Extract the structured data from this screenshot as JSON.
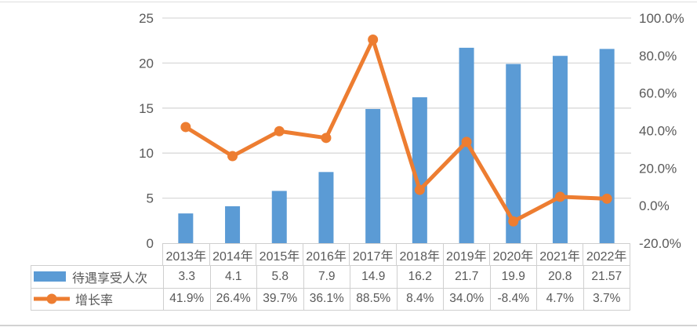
{
  "colors": {
    "bar": "#5B9BD5",
    "line": "#ED7D31",
    "grid": "#D9D9D9",
    "axis_text": "#595959",
    "table_border": "#CFCFCF",
    "background": "#FFFFFF"
  },
  "chart_data": {
    "type": "bar+line combo",
    "title": "",
    "categories": [
      "2013年",
      "2014年",
      "2015年",
      "2016年",
      "2017年",
      "2018年",
      "2019年",
      "2020年",
      "2021年",
      "2022年"
    ],
    "series": [
      {
        "name": "待遇享受人次",
        "type": "bar",
        "axis": "left",
        "color": "#5B9BD5",
        "values": [
          3.3,
          4.1,
          5.8,
          7.9,
          14.9,
          16.2,
          21.7,
          19.9,
          20.8,
          21.57
        ],
        "table_labels": [
          "3.3",
          "4.1",
          "5.8",
          "7.9",
          "14.9",
          "16.2",
          "21.7",
          "19.9",
          "20.8",
          "21.57"
        ]
      },
      {
        "name": "增长率",
        "type": "line",
        "axis": "right",
        "color": "#ED7D31",
        "values": [
          41.9,
          26.4,
          39.7,
          36.1,
          88.5,
          8.4,
          34.0,
          -8.4,
          4.7,
          3.7
        ],
        "table_labels": [
          "41.9%",
          "26.4%",
          "39.7%",
          "36.1%",
          "88.5%",
          "8.4%",
          "34.0%",
          "-8.4%",
          "4.7%",
          "3.7%"
        ]
      }
    ],
    "left_axis": {
      "min": 0,
      "max": 25,
      "tick_values": [
        0,
        5,
        10,
        15,
        20,
        25
      ],
      "tick_labels": [
        "0",
        "5",
        "10",
        "15",
        "20",
        "25"
      ]
    },
    "right_axis": {
      "min": -20,
      "max": 100,
      "tick_values": [
        -20,
        0,
        20,
        40,
        60,
        80,
        100
      ],
      "tick_labels": [
        "-20.0%",
        "0.0%",
        "20.0%",
        "40.0%",
        "60.0%",
        "80.0%",
        "100.0%"
      ]
    },
    "grid": true,
    "legend_position": "table-left",
    "data_table_shown": true
  }
}
